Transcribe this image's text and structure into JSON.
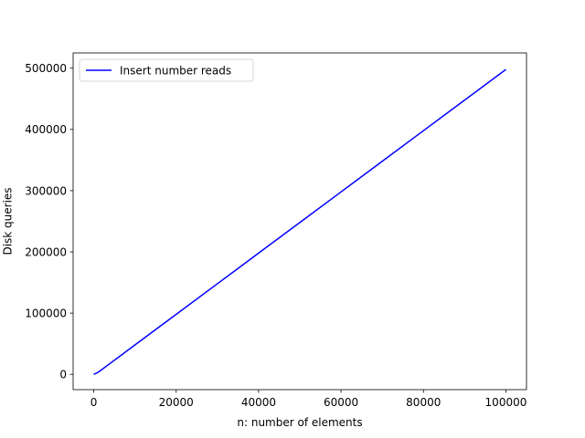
{
  "chart_data": {
    "type": "line",
    "title": "",
    "xlabel": "n: number of elements",
    "ylabel": "Disk queries",
    "xlim": [
      -5000,
      105000
    ],
    "ylim": [
      -25000,
      525000
    ],
    "xticks": [
      0,
      20000,
      40000,
      60000,
      80000,
      100000
    ],
    "yticks": [
      0,
      100000,
      200000,
      300000,
      400000,
      500000
    ],
    "xtick_labels": [
      "0",
      "20000",
      "40000",
      "60000",
      "80000",
      "100000"
    ],
    "ytick_labels": [
      "0",
      "100000",
      "200000",
      "300000",
      "400000",
      "500000"
    ],
    "grid": false,
    "legend_position": "upper-left",
    "series": [
      {
        "name": "Insert number reads",
        "color": "#0000ff",
        "x": [
          0,
          1000,
          2000,
          5000,
          10000,
          20000,
          30000,
          40000,
          50000,
          60000,
          70000,
          80000,
          90000,
          100000
        ],
        "y": [
          0,
          3000,
          8000,
          23000,
          48000,
          98000,
          148000,
          198000,
          248000,
          298000,
          348000,
          398000,
          448000,
          498000
        ]
      }
    ]
  }
}
